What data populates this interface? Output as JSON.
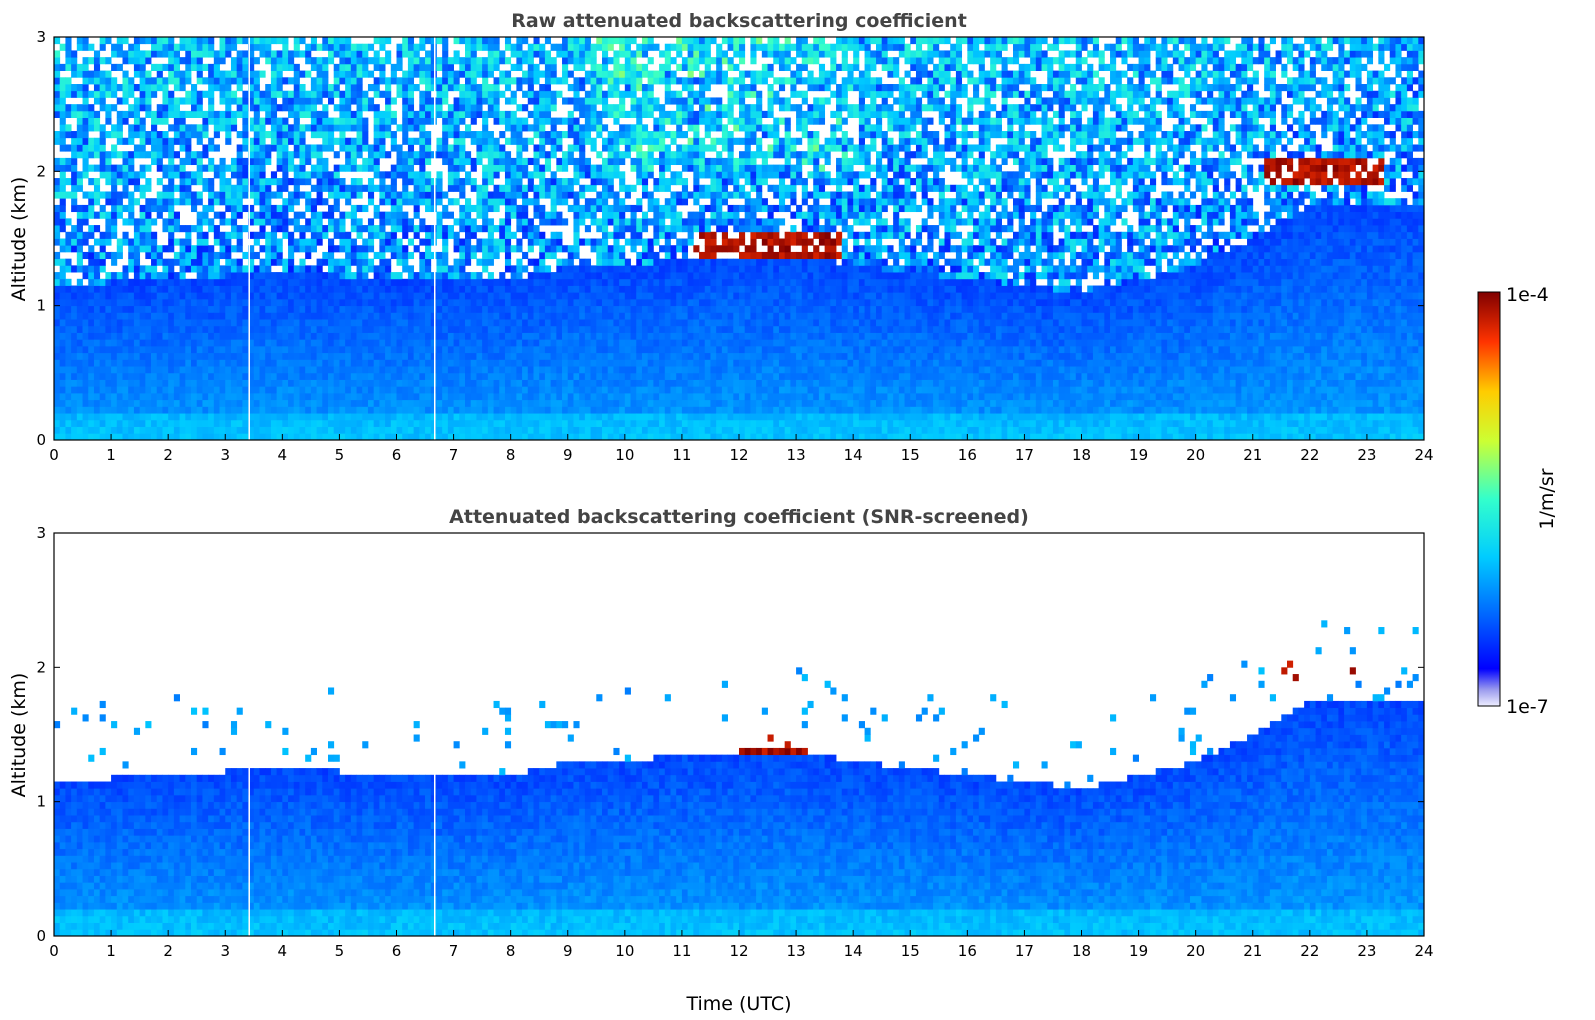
{
  "chart_data": [
    {
      "type": "heatmap",
      "title": "Raw attenuated backscattering coefficient",
      "xlabel": "",
      "ylabel": "Altitude (km)",
      "xlim": [
        0,
        24
      ],
      "ylim": [
        0,
        3
      ],
      "x_ticks": [
        "0",
        "1",
        "2",
        "3",
        "4",
        "5",
        "6",
        "7",
        "8",
        "9",
        "10",
        "11",
        "12",
        "13",
        "14",
        "15",
        "16",
        "17",
        "18",
        "19",
        "20",
        "21",
        "22",
        "23",
        "24"
      ],
      "y_ticks": [
        "0",
        "1",
        "2",
        "3"
      ],
      "screened": false,
      "features": {
        "boundary_layer_top_km": [
          [
            0,
            1.15
          ],
          [
            2,
            1.2
          ],
          [
            4,
            1.25
          ],
          [
            6,
            1.2
          ],
          [
            8,
            1.2
          ],
          [
            9,
            1.3
          ],
          [
            10,
            1.3
          ],
          [
            11,
            1.35
          ],
          [
            13,
            1.4
          ],
          [
            14,
            1.3
          ],
          [
            16,
            1.2
          ],
          [
            18,
            1.1
          ],
          [
            19,
            1.2
          ],
          [
            20,
            1.3
          ],
          [
            21,
            1.5
          ],
          [
            22,
            1.75
          ],
          [
            24,
            1.75
          ]
        ],
        "clouds": [
          {
            "t_start": 11.2,
            "t_end": 13.8,
            "alt_km": 1.45
          },
          {
            "t_start": 21.2,
            "t_end": 23.3,
            "alt_km": 2.0
          }
        ],
        "gaps_utc": [
          3.42,
          6.67
        ]
      }
    },
    {
      "type": "heatmap",
      "title": "Attenuated backscattering coefficient (SNR-screened)",
      "xlabel": "Time (UTC)",
      "ylabel": "Altitude (km)",
      "xlim": [
        0,
        24
      ],
      "ylim": [
        0,
        3
      ],
      "x_ticks": [
        "0",
        "1",
        "2",
        "3",
        "4",
        "5",
        "6",
        "7",
        "8",
        "9",
        "10",
        "11",
        "12",
        "13",
        "14",
        "15",
        "16",
        "17",
        "18",
        "19",
        "20",
        "21",
        "22",
        "23",
        "24"
      ],
      "y_ticks": [
        "0",
        "1",
        "2",
        "3"
      ],
      "screened": true,
      "features": {
        "boundary_layer_top_km": [
          [
            0,
            1.15
          ],
          [
            2,
            1.2
          ],
          [
            4,
            1.25
          ],
          [
            6,
            1.2
          ],
          [
            8,
            1.2
          ],
          [
            9,
            1.3
          ],
          [
            10,
            1.3
          ],
          [
            11,
            1.35
          ],
          [
            13,
            1.4
          ],
          [
            14,
            1.3
          ],
          [
            16,
            1.2
          ],
          [
            18,
            1.1
          ],
          [
            19,
            1.2
          ],
          [
            20,
            1.3
          ],
          [
            21,
            1.5
          ],
          [
            22,
            1.75
          ],
          [
            24,
            1.75
          ]
        ],
        "clouds": [
          {
            "t_start": 11.2,
            "t_end": 13.8,
            "alt_km": 1.45
          },
          {
            "t_start": 21.2,
            "t_end": 23.3,
            "alt_km": 2.0
          }
        ],
        "gaps_utc": [
          3.42,
          6.67
        ]
      }
    }
  ],
  "colorbar": {
    "label": "1/m/sr",
    "max_label": "1e-4",
    "min_label": "1e-7",
    "scale": "log",
    "colormap": "jet",
    "range": [
      1e-07,
      0.0001
    ]
  }
}
